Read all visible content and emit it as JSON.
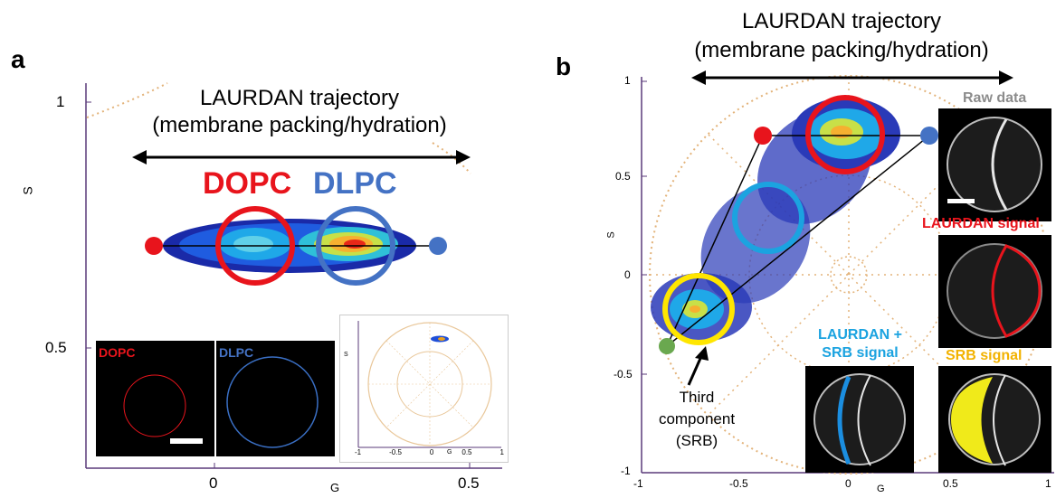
{
  "panel_a": {
    "label": "a",
    "title_line1": "LAURDAN trajectory",
    "title_line2": "(membrane packing/hydration)",
    "lipid1": "DOPC",
    "lipid2": "DLPC",
    "ytick_1": "1",
    "ytick_05": "0.5",
    "xtick_0": "0",
    "xtick_05": "0.5",
    "ylabel": "S",
    "xlabel": "G",
    "inset_label_dopc": "DOPC",
    "inset_label_dlpc": "DLPC",
    "inset_xticks": [
      "-1",
      "-0.5",
      "0",
      "0.5",
      "1"
    ],
    "inset_xlabel": "G",
    "inset_ylabel": "S"
  },
  "panel_b": {
    "label": "b",
    "title_line1": "LAURDAN trajectory",
    "title_line2": "(membrane packing/hydration)",
    "yticks": [
      "1",
      "0.5",
      "0",
      "-0.5",
      "-1"
    ],
    "xticks": [
      "-1",
      "-0.5",
      "0",
      "0.5",
      "1"
    ],
    "ylabel": "S",
    "xlabel": "G",
    "third_line1": "Third",
    "third_line2": "component",
    "third_line3": "(SRB)",
    "raw_data": "Raw data",
    "laurdan_signal": "LAURDAN signal",
    "laurdan_srb_line1": "LAURDAN +",
    "laurdan_srb_line2": "SRB signal",
    "srb_signal": "SRB signal"
  },
  "colors": {
    "red": "#e8141c",
    "blue": "#4472c4",
    "cyan": "#1ba3e0",
    "yellow": "#ffe600",
    "green": "#6aa84f",
    "grey_label": "#8c8c8c",
    "srb_orange": "#f2b200"
  }
}
